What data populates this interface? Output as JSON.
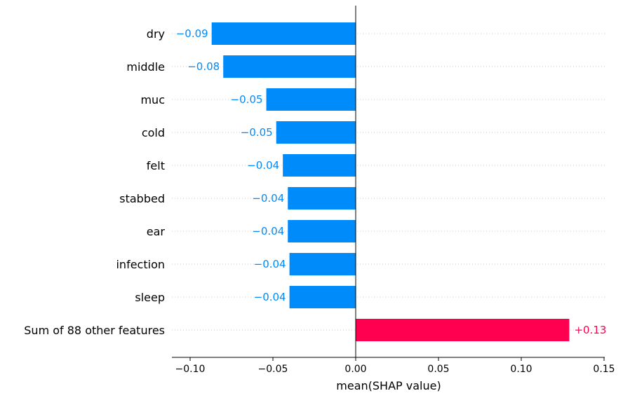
{
  "chart_data": {
    "type": "bar",
    "orientation": "horizontal",
    "title": "",
    "xlabel": "mean(SHAP value)",
    "ylabel": "",
    "categories": [
      "dry",
      "middle",
      "muc",
      "cold",
      "felt",
      "stabbed",
      "ear",
      "infection",
      "sleep",
      "Sum of 88 other features"
    ],
    "values": [
      -0.087,
      -0.08,
      -0.054,
      -0.048,
      -0.044,
      -0.041,
      -0.041,
      -0.04,
      -0.04,
      0.129
    ],
    "value_labels": [
      "−0.09",
      "−0.08",
      "−0.05",
      "−0.05",
      "−0.04",
      "−0.04",
      "−0.04",
      "−0.04",
      "−0.04",
      "+0.13"
    ],
    "x_ticks": [
      -0.1,
      -0.05,
      0.0,
      0.05,
      0.1,
      0.15
    ],
    "x_tick_labels": [
      "−0.10",
      "−0.05",
      "0.00",
      "0.05",
      "0.10",
      "0.15"
    ],
    "xlim": [
      -0.11,
      0.15
    ],
    "grid": "dotted horizontal row guides",
    "colors": {
      "negative": "#008bfb",
      "positive": "#ff0051"
    }
  }
}
